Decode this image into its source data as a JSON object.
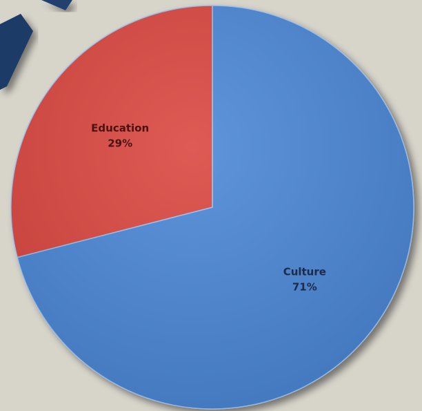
{
  "chart_data": {
    "type": "pie",
    "categories": [
      "Culture",
      "Education"
    ],
    "values": [
      71,
      29
    ],
    "value_labels": [
      "71%",
      "29%"
    ],
    "colors": [
      "#4a86d6",
      "#d9443c"
    ],
    "label_colors": [
      "#1c2b4a",
      "#4a1210"
    ],
    "start_angle": 0,
    "direction": "clockwise"
  }
}
